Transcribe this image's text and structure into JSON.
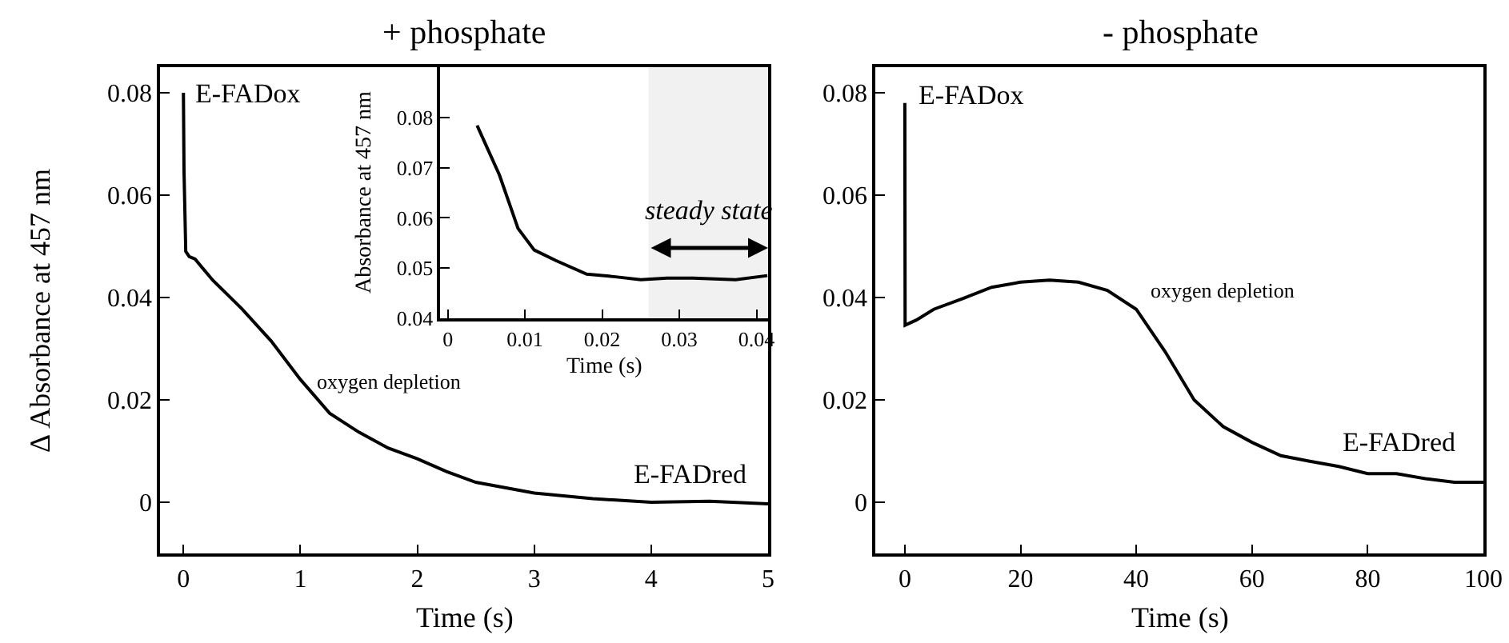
{
  "chart_data": [
    {
      "type": "line",
      "title": "+ phosphate",
      "xlabel": "Time (s)",
      "ylabel": "Δ Absorbance at 457 nm",
      "color": "#000000",
      "line_style": "solid",
      "x": [
        0,
        0.005,
        0.02,
        0.05,
        0.1,
        0.25,
        0.5,
        0.75,
        1,
        1.25,
        1.5,
        1.75,
        2,
        2.25,
        2.5,
        3,
        3.5,
        4,
        4.5,
        5
      ],
      "values": [
        0.08,
        0.065,
        0.049,
        0.048,
        0.0475,
        0.0434,
        0.0378,
        0.0315,
        0.024,
        0.0174,
        0.0137,
        0.0106,
        0.0085,
        0.006,
        0.0039,
        0.0018,
        0.0007,
        0.0,
        0.0002,
        -0.0003
      ],
      "xlim": [
        -0.2,
        5.0
      ],
      "ylim": [
        -0.01,
        0.085
      ],
      "xticks": [
        0,
        1,
        2,
        3,
        4,
        5
      ],
      "yticks": [
        0,
        0.02,
        0.04,
        0.06,
        0.08
      ],
      "annotations": [
        "E-FADox",
        "oxygen depletion",
        "E-FADred"
      ]
    },
    {
      "type": "line",
      "xlabel": "Time (s)",
      "ylabel": "Absorbance at 457 nm",
      "color": "#000000",
      "line_style": "solid",
      "x": [
        0.0038,
        0.0067,
        0.0091,
        0.0112,
        0.014,
        0.018,
        0.0215,
        0.025,
        0.0284,
        0.0318,
        0.0373,
        0.0414
      ],
      "values": [
        0.0784,
        0.0685,
        0.0579,
        0.0536,
        0.0515,
        0.0488,
        0.0483,
        0.0477,
        0.048,
        0.048,
        0.0477,
        0.0485
      ],
      "xlim": [
        -0.001,
        0.0415
      ],
      "ylim": [
        0.04,
        0.09
      ],
      "xticks": [
        0,
        0.01,
        0.02,
        0.03,
        0.04
      ],
      "yticks": [
        0.04,
        0.05,
        0.06,
        0.07,
        0.08
      ],
      "bands": [
        {
          "axis": "x",
          "from": 0.026,
          "to": 0.0415,
          "label": "steady state"
        }
      ]
    },
    {
      "type": "line",
      "title": "- phosphate",
      "xlabel": "Time (s)",
      "color": "#000000",
      "line_style": "solid",
      "x": [
        0,
        0.05,
        2,
        5,
        10,
        15,
        20,
        25,
        30,
        35,
        40,
        45,
        50,
        55,
        60,
        65,
        70,
        75,
        80,
        85,
        90,
        95,
        100
      ],
      "values": [
        0.078,
        0.0346,
        0.0356,
        0.0377,
        0.0398,
        0.042,
        0.043,
        0.0434,
        0.043,
        0.0414,
        0.0377,
        0.0294,
        0.02,
        0.0148,
        0.0117,
        0.0091,
        0.008,
        0.007,
        0.0056,
        0.0056,
        0.0046,
        0.0039,
        0.0039
      ],
      "xlim": [
        -5.1,
        100
      ],
      "ylim": [
        -0.01,
        0.085
      ],
      "xticks": [
        0,
        20,
        40,
        60,
        80,
        100
      ],
      "yticks": [
        0,
        0.02,
        0.04,
        0.06,
        0.08
      ],
      "annotations": [
        "E-FADox",
        "oxygen depletion",
        "E-FADred"
      ]
    }
  ]
}
